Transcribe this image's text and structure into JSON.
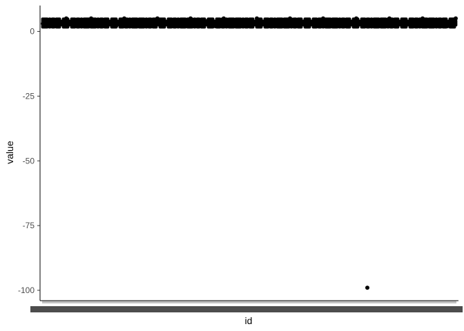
{
  "chart_data": {
    "type": "scatter",
    "title": "",
    "xlabel": "id",
    "ylabel": "value",
    "ylim": [
      -104,
      10
    ],
    "y_ticks": [
      0,
      -25,
      -50,
      -75,
      -100
    ],
    "y_tick_labels": [
      "0",
      "-25",
      "-50",
      "-75",
      "-100"
    ],
    "x_axis": {
      "kind": "categorical",
      "tick_count": 300,
      "tick_labels_legible": false,
      "x_range": [
        1,
        300
      ]
    },
    "points_summary": {
      "note_count": 300,
      "main_band_y": [
        1,
        6
      ]
    },
    "points": [
      {
        "x": 1,
        "y": 3
      },
      {
        "x": 6,
        "y": 4
      },
      {
        "x": 12,
        "y": 2
      },
      {
        "x": 18,
        "y": 5
      },
      {
        "x": 24,
        "y": 3
      },
      {
        "x": 30,
        "y": 2
      },
      {
        "x": 36,
        "y": 5
      },
      {
        "x": 42,
        "y": 4
      },
      {
        "x": 48,
        "y": 3
      },
      {
        "x": 54,
        "y": 2
      },
      {
        "x": 60,
        "y": 5
      },
      {
        "x": 66,
        "y": 3
      },
      {
        "x": 72,
        "y": 4
      },
      {
        "x": 78,
        "y": 2
      },
      {
        "x": 84,
        "y": 5
      },
      {
        "x": 90,
        "y": 3
      },
      {
        "x": 96,
        "y": 4
      },
      {
        "x": 102,
        "y": 2
      },
      {
        "x": 108,
        "y": 5
      },
      {
        "x": 114,
        "y": 3
      },
      {
        "x": 120,
        "y": 4
      },
      {
        "x": 126,
        "y": 2
      },
      {
        "x": 132,
        "y": 5
      },
      {
        "x": 138,
        "y": 3
      },
      {
        "x": 144,
        "y": 4
      },
      {
        "x": 150,
        "y": 2
      },
      {
        "x": 156,
        "y": 5
      },
      {
        "x": 162,
        "y": 3
      },
      {
        "x": 168,
        "y": 4
      },
      {
        "x": 174,
        "y": 2
      },
      {
        "x": 180,
        "y": 5
      },
      {
        "x": 186,
        "y": 3
      },
      {
        "x": 192,
        "y": 4
      },
      {
        "x": 198,
        "y": 2
      },
      {
        "x": 204,
        "y": 5
      },
      {
        "x": 210,
        "y": 3
      },
      {
        "x": 216,
        "y": 4
      },
      {
        "x": 222,
        "y": 2
      },
      {
        "x": 228,
        "y": 5
      },
      {
        "x": 234,
        "y": 3
      },
      {
        "x": 236,
        "y": -99
      },
      {
        "x": 240,
        "y": 4
      },
      {
        "x": 246,
        "y": 2
      },
      {
        "x": 252,
        "y": 5
      },
      {
        "x": 258,
        "y": 3
      },
      {
        "x": 264,
        "y": 4
      },
      {
        "x": 270,
        "y": 2
      },
      {
        "x": 276,
        "y": 5
      },
      {
        "x": 282,
        "y": 3
      },
      {
        "x": 288,
        "y": 4
      },
      {
        "x": 294,
        "y": 2
      },
      {
        "x": 300,
        "y": 5
      }
    ],
    "grid": false,
    "legend": "none",
    "point_color": "#000000",
    "axis_color": "#000000"
  }
}
